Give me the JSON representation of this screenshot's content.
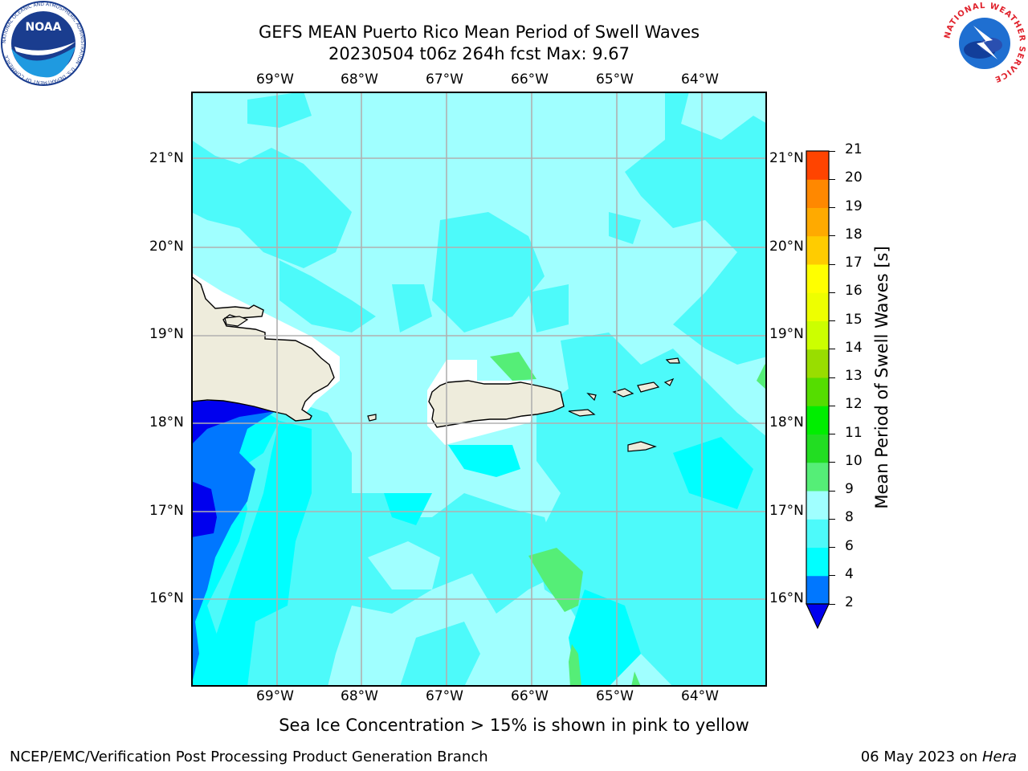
{
  "title": {
    "line1": "GEFS MEAN Puerto Rico Mean Period of Swell Waves",
    "line2": "20230504 t06z 264h fcst   Max: 9.67"
  },
  "map": {
    "lon_labels": [
      "69°W",
      "68°W",
      "67°W",
      "66°W",
      "65°W",
      "64°W"
    ],
    "lat_labels": [
      "21°N",
      "20°N",
      "19°N",
      "18°N",
      "17°N",
      "16°N"
    ],
    "colors": {
      "land": "#eeecdc",
      "grid": "#b0b0b0",
      "c2_4": "#0077ff",
      "c_lt2": "#0000ee",
      "c4_6": "#00ffff",
      "c6_8": "#4dfafa",
      "c8_9": "#a0ffff",
      "c9_10": "#55ee77",
      "ice_mask": "#ffffff"
    }
  },
  "colorbar": {
    "label": "Mean Period of Swell Waves [s]",
    "ticks": [
      "2",
      "4",
      "6",
      "8",
      "9",
      "10",
      "11",
      "12",
      "13",
      "14",
      "15",
      "16",
      "17",
      "18",
      "19",
      "20",
      "21"
    ],
    "colors": [
      "#0077ff",
      "#00ffff",
      "#4dfafa",
      "#a0ffff",
      "#55ee77",
      "#22dd22",
      "#00ee00",
      "#55dd00",
      "#99dd00",
      "#ccff00",
      "#eeff00",
      "#ffff00",
      "#ffcc00",
      "#ffaa00",
      "#ff8800",
      "#ff4400",
      "#ff2200",
      "#ff0000"
    ],
    "extend_color": "#0000ee"
  },
  "note": "Sea Ice Concentration > 15% is shown in pink to yellow",
  "footer": {
    "left": "NCEP/EMC/Verification Post Processing Product Generation Branch",
    "date": "06 May 2023 on ",
    "machine": "Hera"
  },
  "logos": {
    "noaa": "NOAA",
    "nws": "NATIONAL WEATHER SERVICE",
    "noaa_ring": "NATIONAL OCEANIC AND ATMOSPHERIC ADMINISTRATION · U.S. DEPARTMENT OF COMMERCE"
  }
}
